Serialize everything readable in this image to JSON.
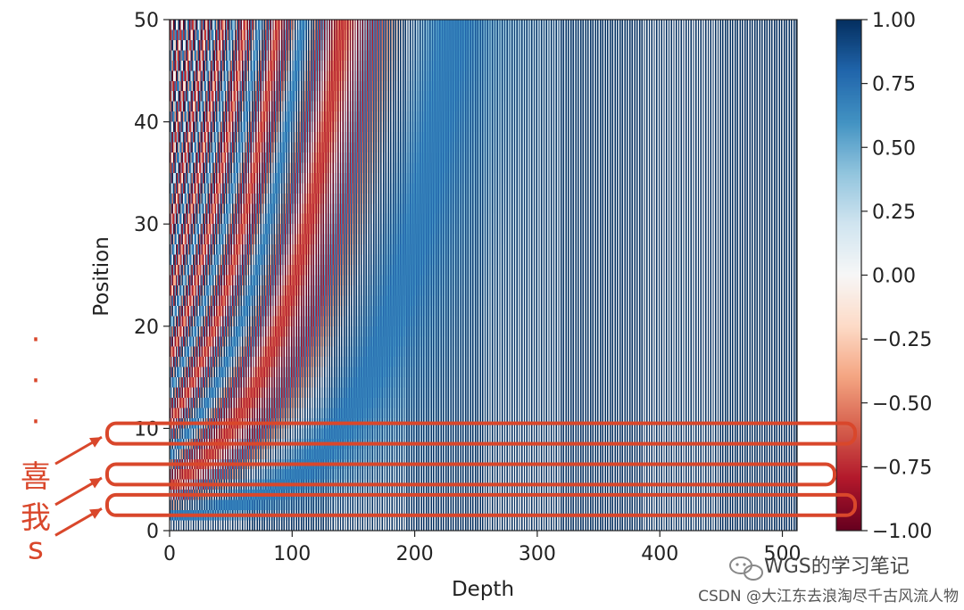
{
  "chart_data": {
    "type": "heatmap",
    "title": "",
    "xlabel": "Depth",
    "ylabel": "Position",
    "x_range": [
      0,
      512
    ],
    "y_range": [
      0,
      50
    ],
    "x_ticks": [
      0,
      100,
      200,
      300,
      400,
      500
    ],
    "y_ticks": [
      0,
      10,
      20,
      30,
      40,
      50
    ],
    "n_positions": 50,
    "d_model": 512,
    "colormap": "RdBu",
    "colormap_stops": [
      "#67001f",
      "#b2182b",
      "#d6604d",
      "#f4a582",
      "#fddbc7",
      "#f7f7f7",
      "#d1e5f0",
      "#92c5de",
      "#4393c3",
      "#2166ac",
      "#053061"
    ],
    "value_range": [
      -1,
      1
    ],
    "colorbar_ticks": [
      "1.00",
      "0.75",
      "0.50",
      "0.25",
      "0.00",
      "−0.25",
      "−0.50",
      "−0.75",
      "−1.00"
    ],
    "grid": false,
    "highlighted_rows": [
      {
        "position": 9,
        "label": "喜"
      },
      {
        "position": 5,
        "label": "我"
      },
      {
        "position": 2,
        "label": "s"
      }
    ],
    "annotation_dots": [
      "·",
      "·",
      "·"
    ],
    "annotation_color": "#d9472b"
  },
  "watermark": {
    "brand": "WGS的学习笔记",
    "brand_icon": "wechat-icon",
    "credit": "CSDN @大江东去浪淘尽千古风流人物"
  }
}
